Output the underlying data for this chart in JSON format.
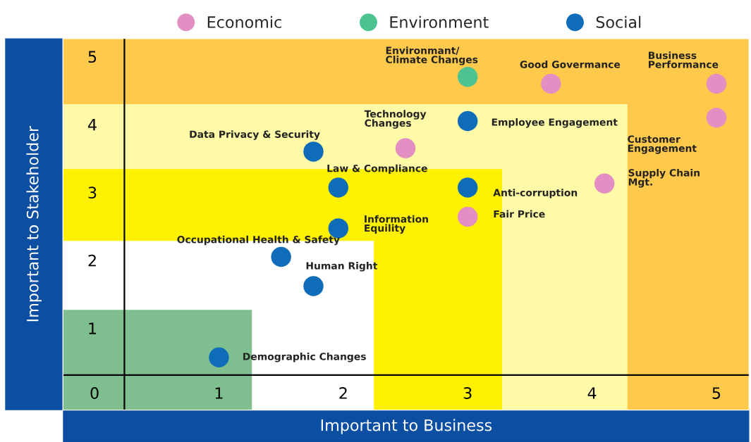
{
  "chart_data": {
    "type": "scatter",
    "xlabel": "Important to Business",
    "ylabel": "Important to Stakeholder",
    "xlim": [
      -0.25,
      5.26
    ],
    "ylim": [
      -0.2,
      5.26
    ],
    "xticks": [
      0,
      1,
      2,
      3,
      4,
      5
    ],
    "yticks": [
      1,
      2,
      3,
      4,
      5
    ],
    "grid": false,
    "ref_lines": [
      {
        "axis": "x",
        "value": 0.24,
        "color": "#000000"
      },
      {
        "axis": "y",
        "value": 0.31,
        "color": "#000000"
      }
    ],
    "legend": "top",
    "marker": "circle",
    "series": [
      {
        "name": "Economic",
        "color": "#e48fc3",
        "x": [
          3.67,
          5,
          5,
          2.5,
          4.1,
          3
        ],
        "values": [
          4.6,
          4.6,
          4.1,
          3.65,
          3.13,
          2.64
        ]
      },
      {
        "name": "Environment",
        "color": "#4cc391",
        "x": [
          3
        ],
        "values": [
          4.7
        ]
      },
      {
        "name": "Social",
        "color": "#0f6cb8",
        "x": [
          3,
          1.76,
          1.96,
          3,
          1.96,
          1.5,
          1.76,
          1
        ],
        "values": [
          4.05,
          3.6,
          3.07,
          3.07,
          2.47,
          2.05,
          1.62,
          0.57
        ]
      }
    ],
    "annotations": [
      {
        "text": "Environmant/\nClimate Changes",
        "x": 3,
        "y": 4.7
      },
      {
        "text": "Good Govermance",
        "x": 3.67,
        "y": 4.6
      },
      {
        "text": "Business\nPerformance",
        "x": 5,
        "y": 4.6
      },
      {
        "text": "Customer\nEngagement",
        "x": 5,
        "y": 4.1
      },
      {
        "text": "Employee Engagement",
        "x": 3,
        "y": 4.05
      },
      {
        "text": "Technology\nChanges",
        "x": 2.5,
        "y": 3.65
      },
      {
        "text": "Data Privacy & Security",
        "x": 1.76,
        "y": 3.6
      },
      {
        "text": "Law & Compliance",
        "x": 1.96,
        "y": 3.07
      },
      {
        "text": "Anti-corruption",
        "x": 3,
        "y": 3.07
      },
      {
        "text": "Supply Chain\nMgt.",
        "x": 4.1,
        "y": 3.13
      },
      {
        "text": "Fair Price",
        "x": 3,
        "y": 2.64
      },
      {
        "text": "Information\nEquility",
        "x": 1.96,
        "y": 2.47
      },
      {
        "text": "Occupational Health & Safety",
        "x": 1.5,
        "y": 2.05
      },
      {
        "text": "Human Right",
        "x": 1.76,
        "y": 1.62
      },
      {
        "text": "Demographic Changes",
        "x": 1,
        "y": 0.57
      }
    ]
  }
}
